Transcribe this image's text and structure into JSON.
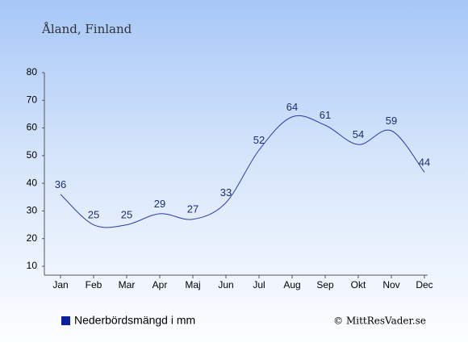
{
  "chart_data": {
    "type": "line",
    "title": "Åland, Finland",
    "categories": [
      "Jan",
      "Feb",
      "Mar",
      "Apr",
      "Maj",
      "Jun",
      "Jul",
      "Aug",
      "Sep",
      "Okt",
      "Nov",
      "Dec"
    ],
    "series": [
      {
        "name": "Nederbördsmängd i mm",
        "values": [
          36,
          25,
          25,
          29,
          27,
          33,
          52,
          64,
          61,
          54,
          59,
          44
        ],
        "color": "#2a3ba8"
      }
    ],
    "yticks": [
      10,
      20,
      30,
      40,
      50,
      60,
      70,
      80
    ],
    "ylim": [
      10,
      80
    ],
    "grid": false,
    "legend_position": "bottom-left"
  },
  "legend": {
    "label": "Nederbördsmängd i mm",
    "marker_color": "#0a1fa0"
  },
  "copyright": "© MittResVader.se"
}
